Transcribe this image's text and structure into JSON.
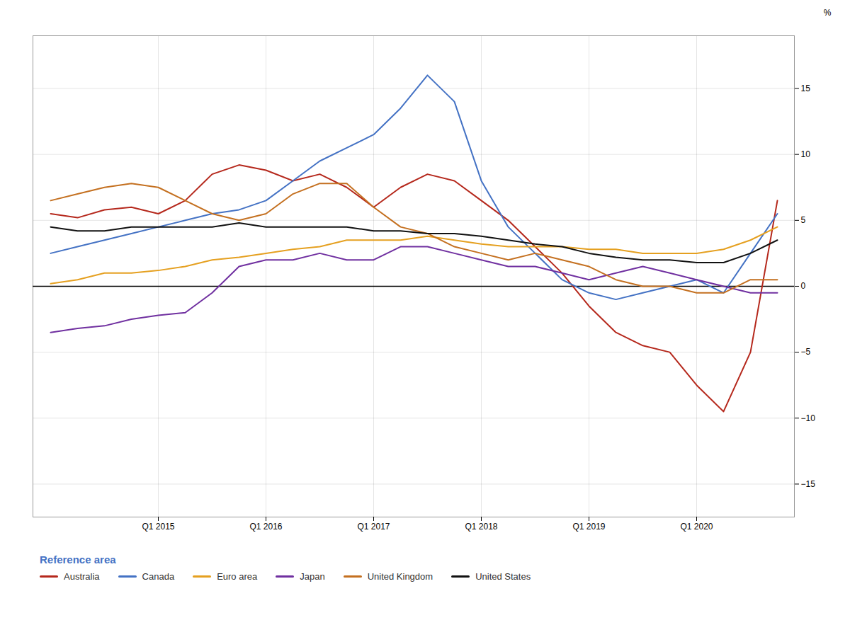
{
  "chart_data": {
    "type": "line",
    "categories": [
      null,
      null,
      null,
      null,
      "Q1 2015",
      null,
      null,
      null,
      "Q1 2016",
      null,
      null,
      null,
      "Q1 2017",
      null,
      null,
      null,
      "Q1 2018",
      null,
      null,
      null,
      "Q1 2019",
      null,
      null,
      null,
      "Q1 2020",
      null,
      null,
      null
    ],
    "y_label": "%",
    "ylim": [
      -17.5,
      19.0
    ],
    "yticks": [
      -15,
      -10,
      -5,
      0,
      5,
      10,
      15
    ],
    "grid": true,
    "legend": "bottom",
    "legend_title": "Reference area",
    "series": [
      {
        "name": "Australia",
        "color": "#b5281c",
        "values": [
          5.5,
          5.2,
          5.8,
          6.0,
          5.5,
          6.5,
          8.5,
          9.2,
          8.8,
          8.0,
          8.5,
          7.5,
          6.0,
          7.5,
          8.5,
          8.0,
          6.5,
          5.0,
          3.0,
          1.0,
          -1.5,
          -3.5,
          -4.5,
          -5.0,
          -7.5,
          -9.5,
          -5.0,
          6.5
        ]
      },
      {
        "name": "Canada",
        "color": "#4472c4",
        "values": [
          2.5,
          3.0,
          3.5,
          4.0,
          4.5,
          5.0,
          5.5,
          5.8,
          6.5,
          8.0,
          9.5,
          10.5,
          11.5,
          13.5,
          16.0,
          14.0,
          8.0,
          4.5,
          2.5,
          0.5,
          -0.5,
          -1.0,
          -0.5,
          0.0,
          0.5,
          -0.5,
          2.5,
          5.5
        ]
      },
      {
        "name": "Euro area",
        "color": "#e5a020",
        "values": [
          0.2,
          0.5,
          1.0,
          1.0,
          1.2,
          1.5,
          2.0,
          2.2,
          2.5,
          2.8,
          3.0,
          3.5,
          3.5,
          3.5,
          3.8,
          3.5,
          3.2,
          3.0,
          3.0,
          3.0,
          2.8,
          2.8,
          2.5,
          2.5,
          2.5,
          2.8,
          3.5,
          4.5
        ]
      },
      {
        "name": "Japan",
        "color": "#7030a0",
        "values": [
          -3.5,
          -3.2,
          -3.0,
          -2.5,
          -2.2,
          -2.0,
          -0.5,
          1.5,
          2.0,
          2.0,
          2.5,
          2.0,
          2.0,
          3.0,
          3.0,
          2.5,
          2.0,
          1.5,
          1.5,
          1.0,
          0.5,
          1.0,
          1.5,
          1.0,
          0.5,
          0.0,
          -0.5,
          -0.5
        ]
      },
      {
        "name": "United Kingdom",
        "color": "#c47020",
        "values": [
          6.5,
          7.0,
          7.5,
          7.8,
          7.5,
          6.5,
          5.5,
          5.0,
          5.5,
          7.0,
          7.8,
          7.8,
          6.0,
          4.5,
          4.0,
          3.0,
          2.5,
          2.0,
          2.5,
          2.0,
          1.5,
          0.5,
          0.0,
          0.0,
          -0.5,
          -0.5,
          0.5,
          0.5
        ]
      },
      {
        "name": "United States",
        "color": "#111111",
        "values": [
          4.5,
          4.2,
          4.2,
          4.5,
          4.5,
          4.5,
          4.5,
          4.8,
          4.5,
          4.5,
          4.5,
          4.5,
          4.2,
          4.2,
          4.0,
          4.0,
          3.8,
          3.5,
          3.2,
          3.0,
          2.5,
          2.2,
          2.0,
          2.0,
          1.8,
          1.8,
          2.5,
          3.5
        ]
      }
    ]
  }
}
